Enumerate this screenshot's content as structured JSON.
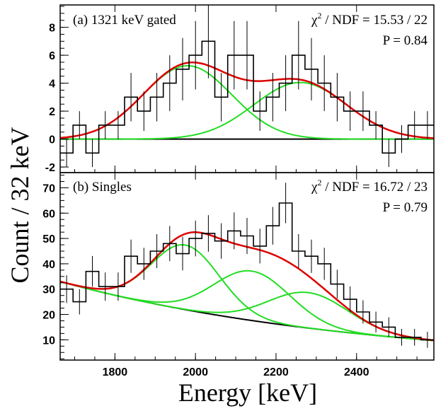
{
  "figure": {
    "ylabel": "Count / 32 keV",
    "xlabel": "Energy [keV]"
  },
  "colors": {
    "histogram": "#000000",
    "total_fit": "#dd0000",
    "components": "#22dd22",
    "background": "#000000",
    "frame": "#000000"
  },
  "chart_data": [
    {
      "type": "histogram",
      "title": "(a) 1321 keV gated",
      "stat_line1_prefix": "χ",
      "stat_line1_sup": "2",
      "stat_line1_rest": " / NDF = 15.53 / 22",
      "stat_line2": "P = 0.84",
      "xlim": [
        1664,
        2592
      ],
      "ylim": [
        -2.4,
        9.6
      ],
      "yticks": [
        -2,
        0,
        2,
        4,
        6,
        8
      ],
      "bin_width": 32,
      "bins_start": 1664,
      "counts": [
        -1,
        1,
        -1,
        1,
        1,
        3,
        2,
        3,
        4,
        5,
        6,
        7,
        3,
        6,
        6,
        2,
        3,
        4,
        6,
        5,
        4,
        3,
        2,
        2,
        1,
        -1,
        0,
        1,
        1
      ],
      "background": {
        "type": "constant",
        "value": 0
      },
      "components": [
        {
          "mean": 1980,
          "sigma": 110,
          "amplitude": 5.25
        },
        {
          "mean": 2260,
          "sigma": 115,
          "amplitude": 4.05
        }
      ]
    },
    {
      "type": "histogram",
      "title": "(b) Singles",
      "stat_line1_prefix": "χ",
      "stat_line1_sup": "2",
      "stat_line1_rest": " / NDF = 16.72 / 23",
      "stat_line2": "P = 0.79",
      "xlim": [
        1664,
        2592
      ],
      "ylim": [
        2,
        76
      ],
      "yticks": [
        10,
        20,
        30,
        40,
        50,
        60,
        70
      ],
      "bin_width": 32,
      "bins_start": 1664,
      "counts": [
        30,
        25,
        37,
        31,
        31,
        43,
        40,
        45,
        48,
        44,
        50,
        52,
        49,
        53,
        51,
        47,
        55,
        64,
        45,
        43,
        40,
        32,
        26,
        21,
        17,
        15,
        11,
        11,
        10
      ],
      "background": {
        "type": "exponential",
        "x0": 1664,
        "y0": 33,
        "x1": 2592,
        "y1": 9.7
      },
      "components": [
        {
          "mean": 1975,
          "sigma": 85,
          "amplitude": 25.5
        },
        {
          "mean": 2140,
          "sigma": 95,
          "amplitude": 19.5
        },
        {
          "mean": 2280,
          "sigma": 100,
          "amplitude": 14
        }
      ]
    }
  ],
  "xticks": [
    1800,
    2000,
    2200,
    2400
  ]
}
